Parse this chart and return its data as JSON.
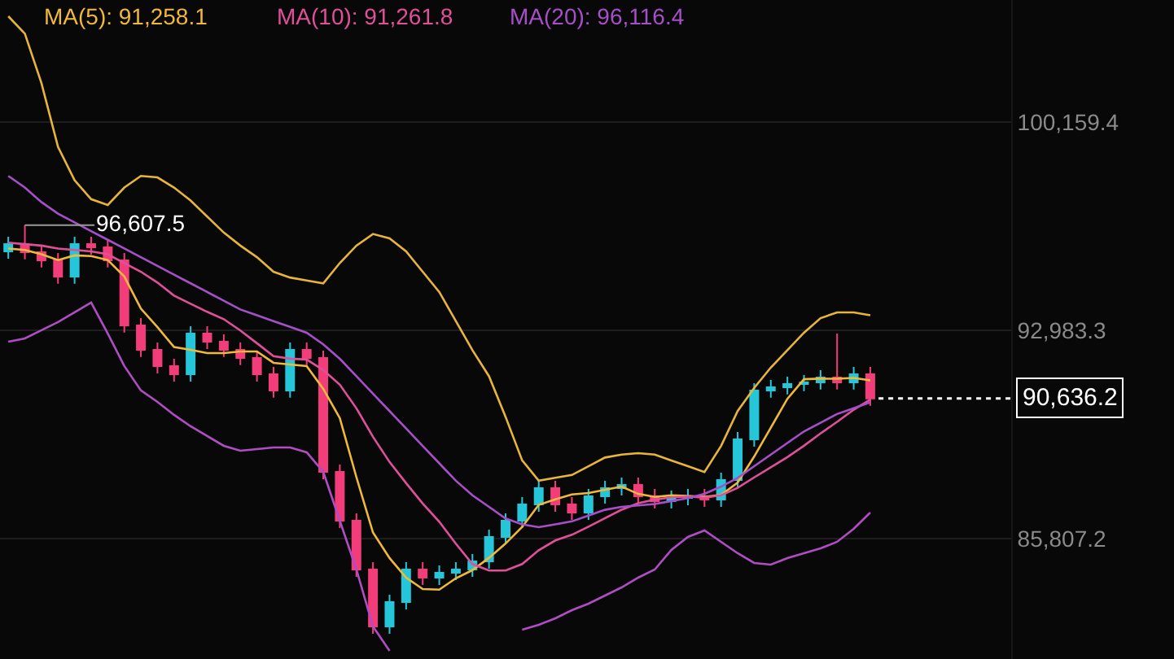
{
  "chart_data": {
    "type": "candlestick",
    "annotations": [
      "MA(5): 91,258.1",
      "MA(10): 91,261.8",
      "MA(20): 96,116.4",
      "96,607.5"
    ],
    "categories": [
      null,
      null,
      null,
      null,
      null,
      null,
      null,
      null,
      null,
      null,
      null,
      null,
      null,
      null,
      null,
      null,
      null,
      null,
      null,
      null,
      null,
      null,
      null,
      null,
      null,
      null,
      null,
      null,
      null,
      null,
      null,
      null,
      null,
      null,
      null,
      null,
      null,
      null,
      null,
      null,
      null,
      null,
      null,
      null,
      null,
      null,
      null,
      null,
      null,
      null,
      null,
      null,
      null
    ],
    "ohlc": [
      [
        95700,
        96205,
        95450,
        95955
      ],
      [
        95955,
        96607.5,
        95425,
        95675
      ],
      [
        95675,
        95925,
        95144,
        95394
      ],
      [
        95394,
        95644,
        94584,
        94834
      ],
      [
        94834,
        96205,
        94584,
        95955
      ],
      [
        95955,
        96205,
        95593,
        95843
      ],
      [
        95843,
        96093,
        95144,
        95394
      ],
      [
        95394,
        95644,
        92902,
        93152
      ],
      [
        93152,
        93402,
        92061,
        92311
      ],
      [
        92311,
        92561,
        91500,
        91750
      ],
      [
        91750,
        92000,
        91220,
        91470
      ],
      [
        91470,
        93122,
        91220,
        92872
      ],
      [
        92872,
        93122,
        92341,
        92591
      ],
      [
        92591,
        92841,
        92061,
        92311
      ],
      [
        92311,
        92561,
        91781,
        92031
      ],
      [
        92031,
        92281,
        91220,
        91470
      ],
      [
        91470,
        91720,
        90660,
        90910
      ],
      [
        90910,
        92561,
        90660,
        92311
      ],
      [
        92311,
        92561,
        91781,
        92031
      ],
      [
        92031,
        92281,
        87857,
        88107
      ],
      [
        88107,
        88357,
        86175,
        86425
      ],
      [
        86425,
        86675,
        84493,
        84743
      ],
      [
        84743,
        84993,
        82531,
        82781
      ],
      [
        82781,
        83872,
        82531,
        83622
      ],
      [
        83622,
        84993,
        83372,
        84743
      ],
      [
        84743,
        84993,
        84213,
        84463
      ],
      [
        84463,
        84881,
        84213,
        84631
      ],
      [
        84631,
        84993,
        84381,
        84743
      ],
      [
        84743,
        85273,
        84493,
        85023
      ],
      [
        85023,
        86114,
        84773,
        85864
      ],
      [
        85864,
        86675,
        85614,
        86425
      ],
      [
        86425,
        87235,
        86175,
        86985
      ],
      [
        86985,
        87796,
        86735,
        87546
      ],
      [
        87546,
        87796,
        86735,
        86985
      ],
      [
        86985,
        87235,
        86455,
        86705
      ],
      [
        86705,
        87516,
        86455,
        87266
      ],
      [
        87266,
        87796,
        87016,
        87546
      ],
      [
        87546,
        87908,
        87296,
        87658
      ],
      [
        87658,
        87908,
        87016,
        87266
      ],
      [
        87266,
        87516,
        86846,
        87096
      ],
      [
        87096,
        87458,
        86846,
        87208
      ],
      [
        87208,
        87516,
        86958,
        87266
      ],
      [
        87266,
        87516,
        86904,
        87154
      ],
      [
        87154,
        88076,
        86904,
        87826
      ],
      [
        87826,
        89478,
        87576,
        89228
      ],
      [
        89228,
        91160,
        88978,
        90910
      ],
      [
        90910,
        91272,
        90660,
        91022
      ],
      [
        91022,
        91384,
        90772,
        91134
      ],
      [
        91134,
        91440,
        90884,
        91190
      ],
      [
        91190,
        91608,
        90940,
        91358
      ],
      [
        91358,
        92872,
        90940,
        91190
      ],
      [
        91190,
        91720,
        90940,
        91470
      ],
      [
        91470,
        91720,
        90386,
        90636
      ]
    ],
    "colors": [
      "#26c6da",
      "#f23d7a",
      "#f23d7a",
      "#f23d7a",
      "#26c6da",
      "#f23d7a",
      "#f23d7a",
      "#f23d7a",
      "#f23d7a",
      "#f23d7a",
      "#f23d7a",
      "#26c6da",
      "#f23d7a",
      "#f23d7a",
      "#f23d7a",
      "#f23d7a",
      "#f23d7a",
      "#26c6da",
      "#f23d7a",
      "#f23d7a",
      "#f23d7a",
      "#f23d7a",
      "#f23d7a",
      "#26c6da",
      "#26c6da",
      "#f23d7a",
      "#26c6da",
      "#26c6da",
      "#26c6da",
      "#26c6da",
      "#26c6da",
      "#26c6da",
      "#26c6da",
      "#f23d7a",
      "#f23d7a",
      "#26c6da",
      "#26c6da",
      "#26c6da",
      "#f23d7a",
      "#f23d7a",
      "#26c6da",
      "#26c6da",
      "#f23d7a",
      "#26c6da",
      "#26c6da",
      "#26c6da",
      "#26c6da",
      "#26c6da",
      "#26c6da",
      "#26c6da",
      "#f23d7a",
      "#26c6da",
      "#f23d7a"
    ],
    "series": [
      {
        "type": "line",
        "color": "#f0b93a",
        "values": [
          95800,
          95750,
          95600,
          95400,
          95563,
          95540,
          95404,
          94836,
          93731,
          93090,
          92407,
          92311,
          92199,
          92199,
          92255,
          92255,
          91863,
          91807,
          91751,
          90966,
          89957,
          87923,
          86017,
          85136,
          84463,
          84070,
          84048,
          84440,
          84721,
          85145,
          85637,
          86208,
          86969,
          87161,
          87329,
          87377,
          87490,
          87600,
          87346,
          87246,
          87295,
          87278,
          87246,
          87310,
          87736,
          88637,
          89628,
          90624,
          91297,
          91317,
          91313,
          91342,
          91258
        ]
      },
      {
        "type": "line",
        "color": "#e0509a",
        "values": [
          96000,
          95950,
          95900,
          95800,
          95750,
          95700,
          95600,
          95300,
          95000,
          94626,
          94178,
          93898,
          93618,
          93366,
          92974,
          92537,
          92089,
          92005,
          91977,
          91613,
          91109,
          90296,
          89315,
          88446,
          87717,
          87016,
          86388,
          85631,
          84930,
          84706,
          84706,
          84930,
          85407,
          85743,
          85939,
          86219,
          86511,
          86803,
          87027,
          87150,
          87228,
          87256,
          87217,
          87301,
          87553,
          87917,
          88265,
          88613,
          89005,
          89431,
          89829,
          90249,
          90597
        ]
      },
      {
        "type": "line",
        "color": "#a64fc9",
        "values": [
          98300,
          97900,
          97400,
          97000,
          96700,
          96400,
          96100,
          95800,
          95500,
          95200,
          94900,
          94600,
          94300,
          94000,
          93700,
          93500,
          93300,
          93100,
          92900,
          92500,
          92000,
          91400,
          90800,
          90200,
          89600,
          89000,
          88400,
          87800,
          87300,
          86900,
          86500,
          86300,
          86200,
          86300,
          86400,
          86600,
          86800,
          86900,
          86950,
          87000,
          87100,
          87200,
          87350,
          87600,
          87900,
          88300,
          88700,
          89100,
          89500,
          89800,
          90100,
          90300,
          90500
        ]
      },
      {
        "type": "line",
        "color": "#e8b53a",
        "values": [
          103800,
          103200,
          101500,
          99300,
          98150,
          97500,
          97300,
          97900,
          98300,
          98250,
          97900,
          97450,
          96900,
          96350,
          95900,
          95500,
          95000,
          94800,
          94700,
          94600,
          95300,
          95900,
          96300,
          96150,
          95700,
          95000,
          94300,
          93300,
          92300,
          91400,
          90000,
          88500,
          87800,
          87900,
          88000,
          88300,
          88600,
          88700,
          88750,
          88700,
          88500,
          88300,
          88100,
          89000,
          90200,
          91000,
          91700,
          92300,
          92900,
          93400,
          93600,
          93600,
          93500
        ]
      },
      {
        "type": "line",
        "color": "#b04cc4",
        "values": [
          92591,
          92703,
          92984,
          93264,
          93600,
          93937,
          92872,
          91750,
          90910,
          90517,
          90069,
          89676,
          89340,
          89004,
          88835,
          88891,
          88947,
          88947,
          88779,
          88107,
          86425,
          84743,
          82781,
          81940,
          null,
          null,
          null,
          null,
          null,
          null,
          null,
          82669,
          82837,
          83061,
          83342,
          83566,
          83846,
          84126,
          84463,
          84743,
          85416,
          85864,
          86089,
          85696,
          85304,
          84968,
          84912,
          85136,
          85304,
          85472,
          85696,
          86145,
          86705
        ]
      }
    ],
    "ylim": [
      81660,
      104360
    ],
    "yticks": [
      {
        "value": 85807.2,
        "label": "85,807.2"
      },
      {
        "value": 92983.3,
        "label": "92,983.3"
      },
      {
        "value": 100159.4,
        "label": "100,159.4"
      }
    ],
    "ref_lines": [
      {
        "axis": "y",
        "value": 90636.2,
        "label": "90,636.2",
        "color": "#ffffff",
        "line_style": "dotted"
      }
    ],
    "grid": "y",
    "tick_labels": "y"
  }
}
